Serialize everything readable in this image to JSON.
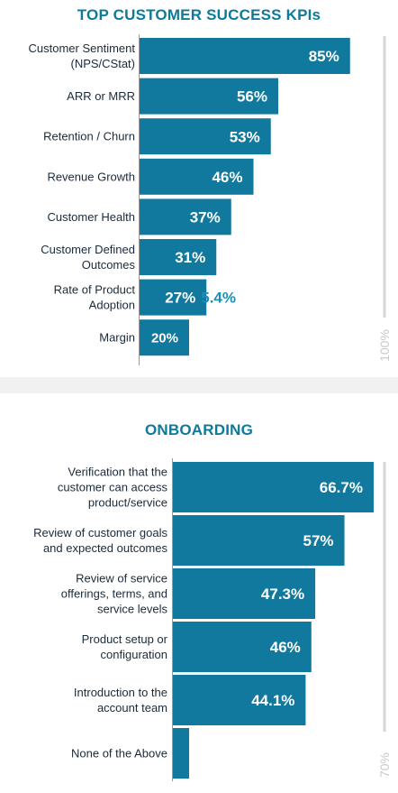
{
  "chart_data": [
    {
      "type": "bar",
      "orientation": "horizontal",
      "title": "TOP CUSTOMER SUCCESS KPIs",
      "categories": [
        [
          "Customer Sentiment",
          "(NPS/CStat)"
        ],
        [
          "ARR or MRR"
        ],
        [
          "Retention / Churn"
        ],
        [
          "Revenue Growth"
        ],
        [
          "Customer Health"
        ],
        [
          "Customer Defined",
          "Outcomes"
        ],
        [
          "Rate of Product",
          "Adoption"
        ],
        [
          "Margin"
        ]
      ],
      "values": [
        85,
        56,
        53,
        46,
        37,
        31,
        27,
        20
      ],
      "labels": [
        "85%",
        "56%",
        "53%",
        "46%",
        "37%",
        "31%",
        "27%",
        "20%"
      ],
      "extra_label": "5.4%",
      "scale_label": "100%",
      "xlim": [
        0,
        100
      ],
      "bar_color": "#12799e",
      "grid": false
    },
    {
      "type": "bar",
      "orientation": "horizontal",
      "title": "ONBOARDING",
      "categories": [
        [
          "Verification that the",
          "customer can access",
          "product/service"
        ],
        [
          "Review of customer goals",
          "and expected outcomes"
        ],
        [
          "Review of service",
          "offerings, terms, and",
          "service levels"
        ],
        [
          "Product setup or",
          "configuration"
        ],
        [
          "Introduction to the",
          "account team"
        ],
        [
          "None of the Above"
        ]
      ],
      "values": [
        66.7,
        57,
        47.3,
        46,
        44.1,
        5.4
      ],
      "labels": [
        "66.7%",
        "57%",
        "47.3%",
        "46%",
        "44.1%",
        ""
      ],
      "scale_label": "70%",
      "xlim": [
        0,
        70
      ],
      "bar_color": "#12799e",
      "grid": false
    }
  ]
}
